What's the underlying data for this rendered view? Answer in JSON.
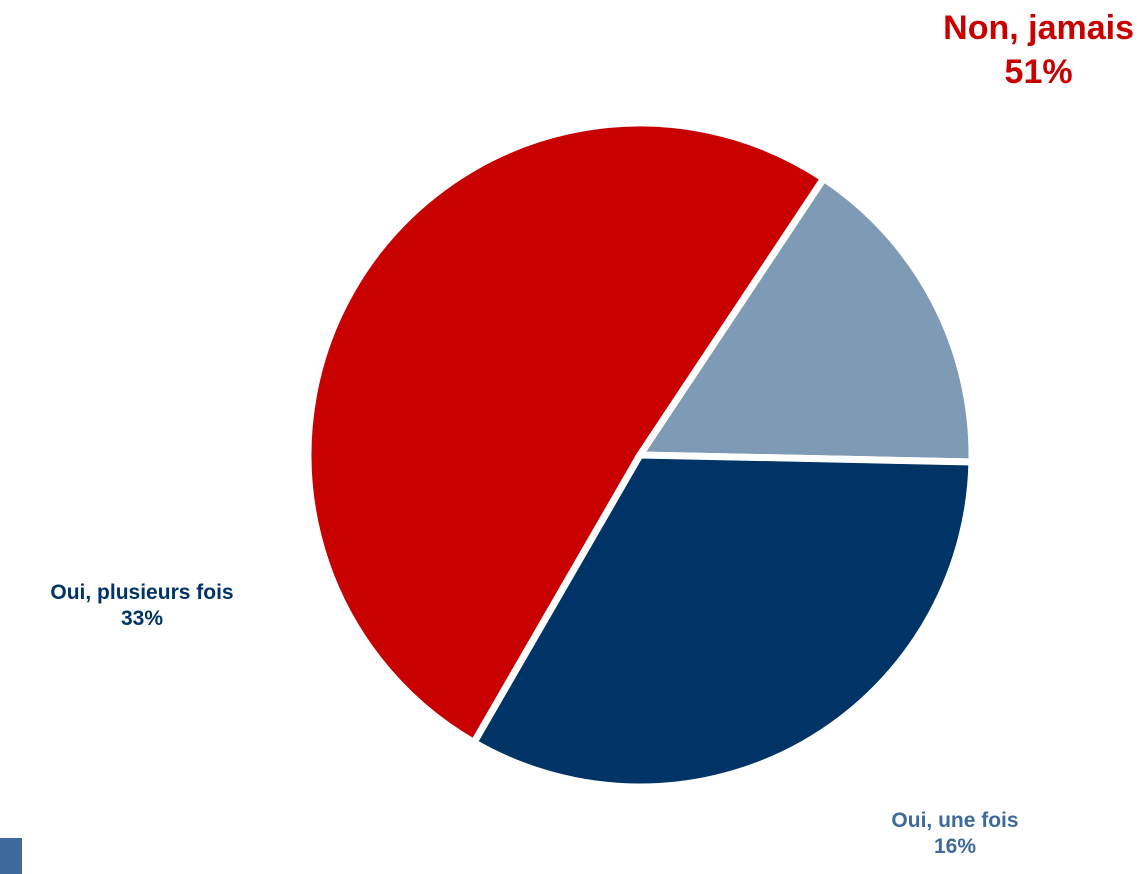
{
  "chart_data": {
    "type": "pie",
    "start_angle_deg": 120,
    "direction": "clockwise",
    "slices": [
      {
        "label": "Non, jamais",
        "value": 51,
        "value_label": "51%",
        "color": "#c80000"
      },
      {
        "label": "Oui, une fois",
        "value": 16,
        "value_label": "16%",
        "color": "#7f9ab5"
      },
      {
        "label": "Oui, plusieurs fois",
        "value": 33,
        "value_label": "33%",
        "color": "#003366"
      }
    ],
    "label_colors": {
      "non": "#c80000",
      "une": "#3e6a99",
      "plus": "#003366"
    }
  }
}
